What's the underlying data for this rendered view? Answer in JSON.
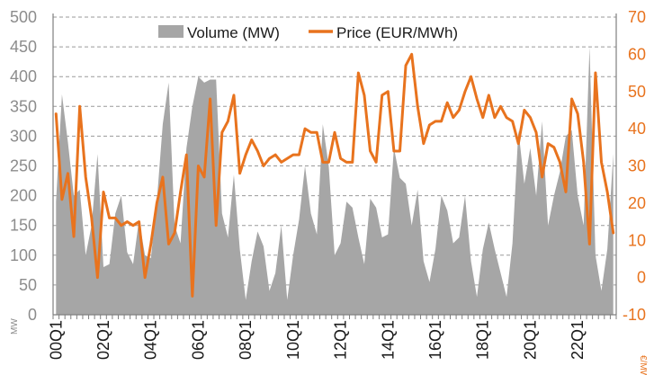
{
  "chart_data": {
    "type": "bar+line",
    "title": "",
    "x_ticks": [
      "00Q1",
      "02Q1",
      "04Q1",
      "06Q1",
      "08Q1",
      "10Q1",
      "12Q1",
      "14Q1",
      "16Q1",
      "18Q1",
      "20Q1",
      "22Q1"
    ],
    "left_axis": {
      "unit": "MW",
      "min": 0,
      "max": 500,
      "step": 50,
      "ticks": [
        "0",
        "50",
        "100",
        "150",
        "200",
        "250",
        "300",
        "350",
        "400",
        "450",
        "500"
      ]
    },
    "right_axis": {
      "unit": "€/MWh",
      "min": -10,
      "max": 70,
      "step": 10,
      "ticks": [
        "-10",
        "0",
        "10",
        "20",
        "30",
        "40",
        "50",
        "60",
        "70"
      ]
    },
    "grid": true,
    "legend": {
      "placement": "top-center",
      "items": [
        {
          "label": "Volume (MW)",
          "color": "#a6a6a6",
          "kind": "area"
        },
        {
          "label": "Price (EUR/MWh)",
          "color": "#e8731e",
          "kind": "line"
        }
      ]
    },
    "x_start": "2000Q1",
    "series": [
      {
        "name": "Volume (MW)",
        "axis": "left",
        "color": "#a6a6a6",
        "values": [
          190,
          370,
          290,
          200,
          210,
          100,
          150,
          270,
          80,
          85,
          170,
          200,
          105,
          85,
          160,
          100,
          95,
          190,
          320,
          390,
          150,
          120,
          280,
          350,
          400,
          390,
          395,
          395,
          170,
          130,
          235,
          110,
          25,
          90,
          140,
          115,
          40,
          70,
          150,
          25,
          100,
          160,
          250,
          170,
          135,
          320,
          250,
          100,
          120,
          190,
          180,
          130,
          85,
          195,
          180,
          130,
          135,
          280,
          230,
          220,
          150,
          210,
          90,
          55,
          110,
          200,
          175,
          120,
          130,
          200,
          90,
          30,
          110,
          155,
          110,
          70,
          30,
          120,
          310,
          220,
          280,
          200,
          325,
          150,
          200,
          240,
          300,
          310,
          200,
          150,
          450,
          100,
          40,
          110,
          270
        ]
      },
      {
        "name": "Price (EUR/MWh)",
        "axis": "right",
        "color": "#e8731e",
        "values": [
          44,
          21,
          28,
          11,
          46,
          27,
          16,
          0,
          23,
          16,
          16,
          14,
          15,
          14,
          15,
          0,
          9,
          20,
          27,
          9,
          12,
          23,
          33,
          -5,
          30,
          27,
          48,
          14,
          39,
          42,
          49,
          28,
          33,
          37,
          34,
          30,
          32,
          33,
          31,
          32,
          33,
          33,
          40,
          39,
          39,
          31,
          31,
          39,
          32,
          31,
          31,
          55,
          49,
          34,
          31,
          49,
          50,
          34,
          34,
          57,
          60,
          46,
          36,
          41,
          42,
          42,
          47,
          43,
          45,
          50,
          54,
          48,
          43,
          49,
          43,
          46,
          43,
          42,
          36,
          45,
          43,
          39,
          27,
          36,
          35,
          31,
          23,
          48,
          44,
          31,
          9,
          55,
          31,
          23,
          12
        ]
      }
    ]
  }
}
